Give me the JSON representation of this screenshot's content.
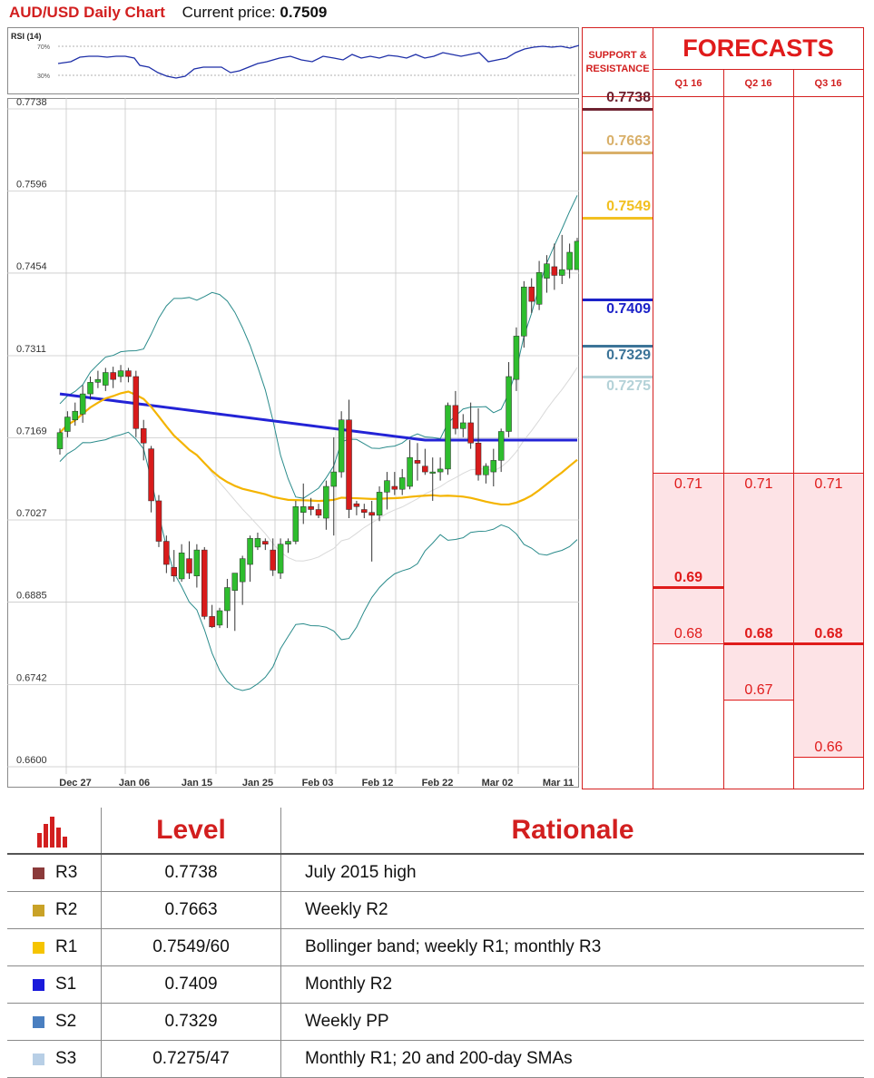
{
  "header": {
    "title": "AUD/USD Daily Chart",
    "price_label": "Current price:",
    "price_value": "0.7509"
  },
  "rsi": {
    "label": "RSI (14)",
    "levels": [
      "70%",
      "30%"
    ]
  },
  "chart_data": {
    "type": "candlestick",
    "ylim": [
      0.66,
      0.7738
    ],
    "yticks": [
      "0.7738",
      "0.7596",
      "0.7454",
      "0.7311",
      "0.7169",
      "0.7027",
      "0.6885",
      "0.6742",
      "0.6600"
    ],
    "xticks": [
      "Dec 27",
      "Jan 06",
      "Jan 15",
      "Jan 25",
      "Feb 03",
      "Feb 12",
      "Feb 22",
      "Mar 02",
      "Mar 11"
    ],
    "candles": [
      [
        0.715,
        0.7185,
        0.714,
        0.7178
      ],
      [
        0.718,
        0.7215,
        0.717,
        0.7205
      ],
      [
        0.72,
        0.723,
        0.719,
        0.7215
      ],
      [
        0.721,
        0.726,
        0.7195,
        0.7245
      ],
      [
        0.7245,
        0.7275,
        0.7235,
        0.7265
      ],
      [
        0.7265,
        0.7285,
        0.7255,
        0.727
      ],
      [
        0.726,
        0.729,
        0.725,
        0.7282
      ],
      [
        0.7282,
        0.7292,
        0.7255,
        0.727
      ],
      [
        0.7275,
        0.7295,
        0.7265,
        0.7285
      ],
      [
        0.7285,
        0.729,
        0.7265,
        0.7275
      ],
      [
        0.7275,
        0.7285,
        0.717,
        0.7185
      ],
      [
        0.7185,
        0.72,
        0.713,
        0.716
      ],
      [
        0.715,
        0.7155,
        0.704,
        0.706
      ],
      [
        0.706,
        0.707,
        0.698,
        0.699
      ],
      [
        0.699,
        0.7,
        0.6935,
        0.695
      ],
      [
        0.6945,
        0.6975,
        0.692,
        0.693
      ],
      [
        0.6925,
        0.6985,
        0.692,
        0.697
      ],
      [
        0.696,
        0.699,
        0.6925,
        0.6935
      ],
      [
        0.693,
        0.6985,
        0.691,
        0.6975
      ],
      [
        0.6975,
        0.698,
        0.6855,
        0.686
      ],
      [
        0.686,
        0.688,
        0.684,
        0.6842
      ],
      [
        0.6845,
        0.6875,
        0.684,
        0.687
      ],
      [
        0.687,
        0.6925,
        0.684,
        0.691
      ],
      [
        0.6905,
        0.693,
        0.6835,
        0.6935
      ],
      [
        0.692,
        0.6965,
        0.688,
        0.696
      ],
      [
        0.695,
        0.7,
        0.692,
        0.6995
      ],
      [
        0.698,
        0.7005,
        0.6975,
        0.6995
      ],
      [
        0.699,
        0.6995,
        0.6975,
        0.6985
      ],
      [
        0.6975,
        0.6995,
        0.693,
        0.694
      ],
      [
        0.6935,
        0.6995,
        0.6925,
        0.6985
      ],
      [
        0.6985,
        0.6995,
        0.697,
        0.699
      ],
      [
        0.699,
        0.706,
        0.6985,
        0.705
      ],
      [
        0.704,
        0.709,
        0.702,
        0.705
      ],
      [
        0.705,
        0.7065,
        0.7035,
        0.7045
      ],
      [
        0.7045,
        0.7055,
        0.703,
        0.7035
      ],
      [
        0.703,
        0.7095,
        0.701,
        0.7085
      ],
      [
        0.7085,
        0.717,
        0.7,
        0.711
      ],
      [
        0.711,
        0.7215,
        0.71,
        0.72
      ],
      [
        0.72,
        0.7235,
        0.703,
        0.7045
      ],
      [
        0.7055,
        0.706,
        0.7035,
        0.705
      ],
      [
        0.7045,
        0.7055,
        0.703,
        0.704
      ],
      [
        0.704,
        0.706,
        0.6955,
        0.7035
      ],
      [
        0.7035,
        0.7085,
        0.7025,
        0.7075
      ],
      [
        0.7075,
        0.711,
        0.7045,
        0.7095
      ],
      [
        0.7085,
        0.711,
        0.707,
        0.708
      ],
      [
        0.708,
        0.7115,
        0.707,
        0.71
      ],
      [
        0.7085,
        0.7165,
        0.708,
        0.7135
      ],
      [
        0.713,
        0.716,
        0.7095,
        0.7125
      ],
      [
        0.712,
        0.715,
        0.7105,
        0.711
      ],
      [
        0.711,
        0.7135,
        0.706,
        0.711
      ],
      [
        0.711,
        0.7135,
        0.7095,
        0.7115
      ],
      [
        0.7115,
        0.723,
        0.7105,
        0.7225
      ],
      [
        0.7225,
        0.725,
        0.7175,
        0.7185
      ],
      [
        0.7185,
        0.721,
        0.717,
        0.7195
      ],
      [
        0.7195,
        0.723,
        0.715,
        0.716
      ],
      [
        0.716,
        0.722,
        0.7095,
        0.7105
      ],
      [
        0.7105,
        0.7125,
        0.709,
        0.712
      ],
      [
        0.711,
        0.715,
        0.7085,
        0.713
      ],
      [
        0.713,
        0.7185,
        0.711,
        0.718
      ],
      [
        0.718,
        0.73,
        0.717,
        0.7275
      ],
      [
        0.727,
        0.736,
        0.725,
        0.7345
      ],
      [
        0.7345,
        0.744,
        0.7325,
        0.743
      ],
      [
        0.743,
        0.7445,
        0.7385,
        0.7405
      ],
      [
        0.74,
        0.7475,
        0.739,
        0.7455
      ],
      [
        0.7445,
        0.7485,
        0.742,
        0.747
      ],
      [
        0.7465,
        0.7505,
        0.7425,
        0.745
      ],
      [
        0.745,
        0.752,
        0.7435,
        0.746
      ],
      [
        0.746,
        0.7505,
        0.7445,
        0.749
      ],
      [
        0.746,
        0.7515,
        0.746,
        0.7509
      ]
    ],
    "sr_levels": [
      {
        "label": "0.7738",
        "value": 0.7738,
        "color": "#6e2230"
      },
      {
        "label": "0.7663",
        "value": 0.7663,
        "color": "#d9b06a"
      },
      {
        "label": "0.7549",
        "value": 0.7549,
        "color": "#f2c021"
      },
      {
        "label": "0.7409",
        "value": 0.7409,
        "color": "#1c22c8"
      },
      {
        "label": "0.7329",
        "value": 0.7329,
        "color": "#3c7498"
      },
      {
        "label": "0.7275",
        "value": 0.7275,
        "color": "#b4d2d8"
      }
    ],
    "forecasts": {
      "title": "FORECASTS",
      "quarters": [
        "Q1 16",
        "Q2 16",
        "Q3 16"
      ],
      "values": [
        {
          "q": "Q1 16",
          "high": 0.71,
          "mid": 0.69,
          "low": 0.68
        },
        {
          "q": "Q2 16",
          "high": 0.71,
          "mid": 0.68,
          "low": 0.67
        },
        {
          "q": "Q3 16",
          "high": 0.71,
          "mid": 0.68,
          "low": 0.66
        }
      ]
    }
  },
  "sr_header": "SUPPORT & RESISTANCE",
  "forecast_labels": {
    "q1": {
      "high": "0.71",
      "mid": "0.69",
      "low": "0.68"
    },
    "q2": {
      "high": "0.71",
      "mid": "0.68",
      "low": "0.67"
    },
    "q3": {
      "high": "0.71",
      "mid": "0.68",
      "low": "0.66"
    }
  },
  "table": {
    "headers": {
      "level": "Level",
      "rationale": "Rationale"
    },
    "rows": [
      {
        "label": "R3",
        "color": "#8b3a3a",
        "level": "0.7738",
        "rationale": "July 2015 high"
      },
      {
        "label": "R2",
        "color": "#c9a227",
        "level": "0.7663",
        "rationale": "Weekly R2"
      },
      {
        "label": "R1",
        "color": "#f5c400",
        "level": "0.7549/60",
        "rationale": "Bollinger band; weekly R1; monthly R3"
      },
      {
        "label": "S1",
        "color": "#1a1adb",
        "level": "0.7409",
        "rationale": "Monthly R2"
      },
      {
        "label": "S2",
        "color": "#4a7fc0",
        "level": "0.7329",
        "rationale": "Weekly PP"
      },
      {
        "label": "S3",
        "color": "#b8cfe6",
        "level": "0.7275/47",
        "rationale": "Monthly R1; 20 and 200-day SMAs"
      }
    ]
  }
}
